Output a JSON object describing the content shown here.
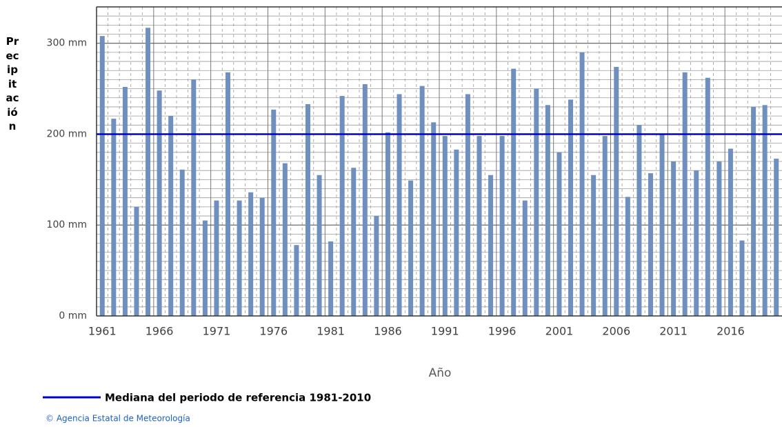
{
  "chart_data": {
    "type": "bar",
    "y_label": "Precipitación",
    "x_label": "Año",
    "categories": [
      1961,
      null,
      null,
      null,
      null,
      1966,
      null,
      null,
      null,
      null,
      1971,
      null,
      null,
      null,
      null,
      1976,
      null,
      null,
      null,
      null,
      1981,
      null,
      null,
      null,
      null,
      1986,
      null,
      null,
      null,
      null,
      1991,
      null,
      null,
      null,
      null,
      1996,
      null,
      null,
      null,
      null,
      2001,
      null,
      null,
      null,
      null,
      2006,
      null,
      null,
      null,
      null,
      2011,
      null,
      null,
      null,
      null,
      2016,
      null,
      null,
      null,
      null
    ],
    "values": [
      308,
      217,
      252,
      120,
      317,
      248,
      220,
      161,
      260,
      105,
      127,
      268,
      127,
      136,
      130,
      227,
      168,
      78,
      233,
      155,
      82,
      242,
      163,
      255,
      110,
      202,
      244,
      149,
      253,
      213,
      198,
      183,
      244,
      198,
      155,
      198,
      272,
      127,
      250,
      232,
      180,
      238,
      290,
      155,
      198,
      274,
      131,
      210,
      157,
      200,
      170,
      268,
      160,
      262,
      170,
      184,
      83,
      230,
      232,
      173
    ],
    "color": "#6f8fbf",
    "ylim": [
      0,
      340
    ],
    "yticks": [
      {
        "value": 0,
        "label": "0 mm"
      },
      {
        "value": 100,
        "label": "100 mm"
      },
      {
        "value": 200,
        "label": "200 mm"
      },
      {
        "value": 300,
        "label": "300 mm"
      }
    ],
    "grid": true,
    "reference_line": {
      "name": "Mediana del periodo de referencia 1981-2010",
      "value": 200,
      "color": "#0000cc"
    },
    "source": "© Agencia Estatal de Meteorología"
  }
}
